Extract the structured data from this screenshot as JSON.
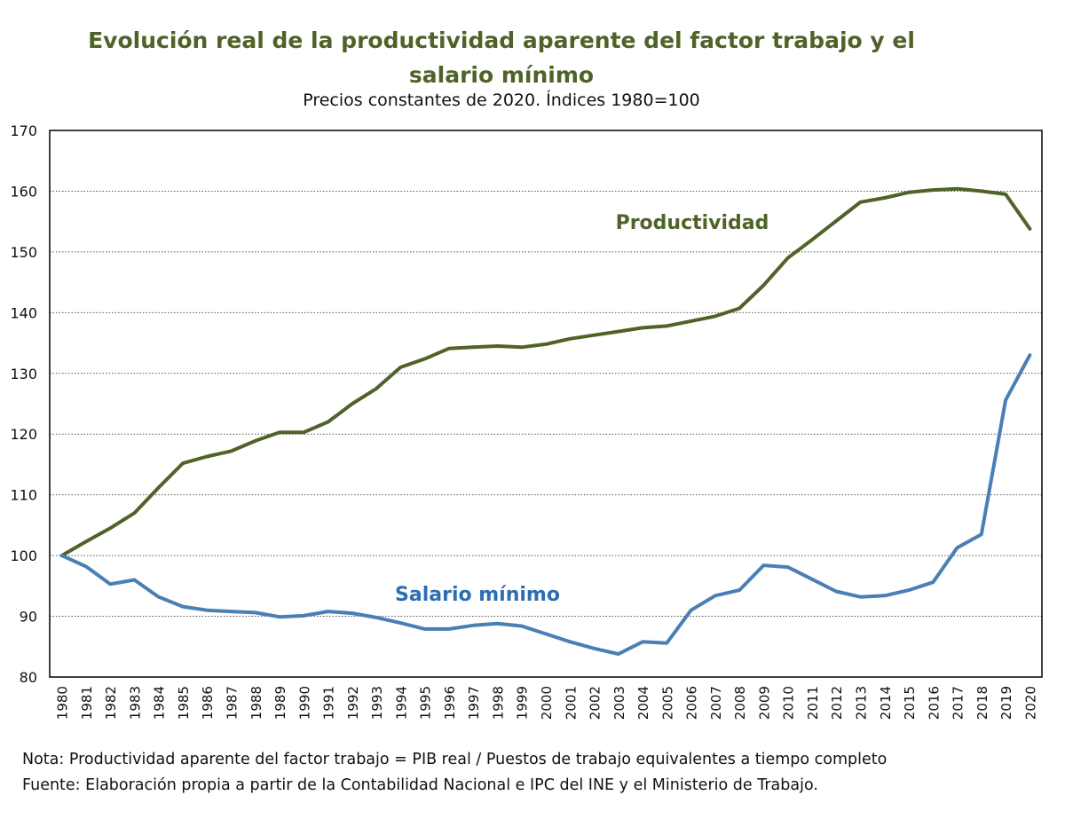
{
  "chart_data": {
    "type": "line",
    "title_lines": [
      "Evolución real de la productividad aparente del factor trabajo y el",
      "salario mínimo"
    ],
    "subtitle": "Precios constantes de 2020. Índices 1980=100",
    "x": [
      "1980",
      "1981",
      "1982",
      "1983",
      "1984",
      "1985",
      "1986",
      "1987",
      "1988",
      "1989",
      "1990",
      "1991",
      "1992",
      "1993",
      "1994",
      "1995",
      "1996",
      "1997",
      "1998",
      "1999",
      "2000",
      "2001",
      "2002",
      "2003",
      "2004",
      "2005",
      "2006",
      "2007",
      "2008",
      "2009",
      "2010",
      "2011",
      "2012",
      "2013",
      "2014",
      "2015",
      "2016",
      "2017",
      "2018",
      "2019",
      "2020"
    ],
    "ylim": [
      80,
      170
    ],
    "yticks": [
      80,
      90,
      100,
      110,
      120,
      130,
      140,
      150,
      160,
      170
    ],
    "grid": "horizontal dotted",
    "series": [
      {
        "name": "Productividad",
        "color": "#4f6228",
        "label_color": "#4f6228",
        "values": [
          100,
          102.3,
          104.5,
          107,
          111.2,
          115.2,
          116.3,
          117.2,
          118.9,
          120.3,
          120.3,
          122,
          125,
          127.5,
          131,
          132.4,
          134.1,
          134.3,
          134.5,
          134.3,
          134.8,
          135.7,
          136.3,
          136.9,
          137.5,
          137.8,
          138.6,
          139.4,
          140.7,
          144.5,
          149,
          152,
          155.1,
          158.2,
          158.9,
          159.8,
          160.2,
          160.4,
          160,
          159.5,
          153.8
        ]
      },
      {
        "name": "Salario mínimo",
        "color": "#4a7fb5",
        "label_color": "#2e6db0",
        "values": [
          100,
          98.2,
          95.3,
          96,
          93.2,
          91.6,
          91,
          90.8,
          90.6,
          89.9,
          90.1,
          90.8,
          90.5,
          89.8,
          88.9,
          87.9,
          87.9,
          88.5,
          88.8,
          88.4,
          87.1,
          85.8,
          84.7,
          83.8,
          85.8,
          85.6,
          91,
          93.4,
          94.3,
          98.4,
          98.1,
          96.1,
          94.1,
          93.2,
          93.4,
          94.3,
          95.6,
          101.3,
          103.5,
          125.6,
          133
        ]
      }
    ]
  },
  "notes": {
    "note": "Nota: Productividad aparente del factor trabajo = PIB real / Puestos de trabajo equivalentes a tiempo completo",
    "source": "Fuente: Elaboración propia a partir de la Contabilidad Nacional e IPC del INE y el Ministerio de Trabajo."
  }
}
